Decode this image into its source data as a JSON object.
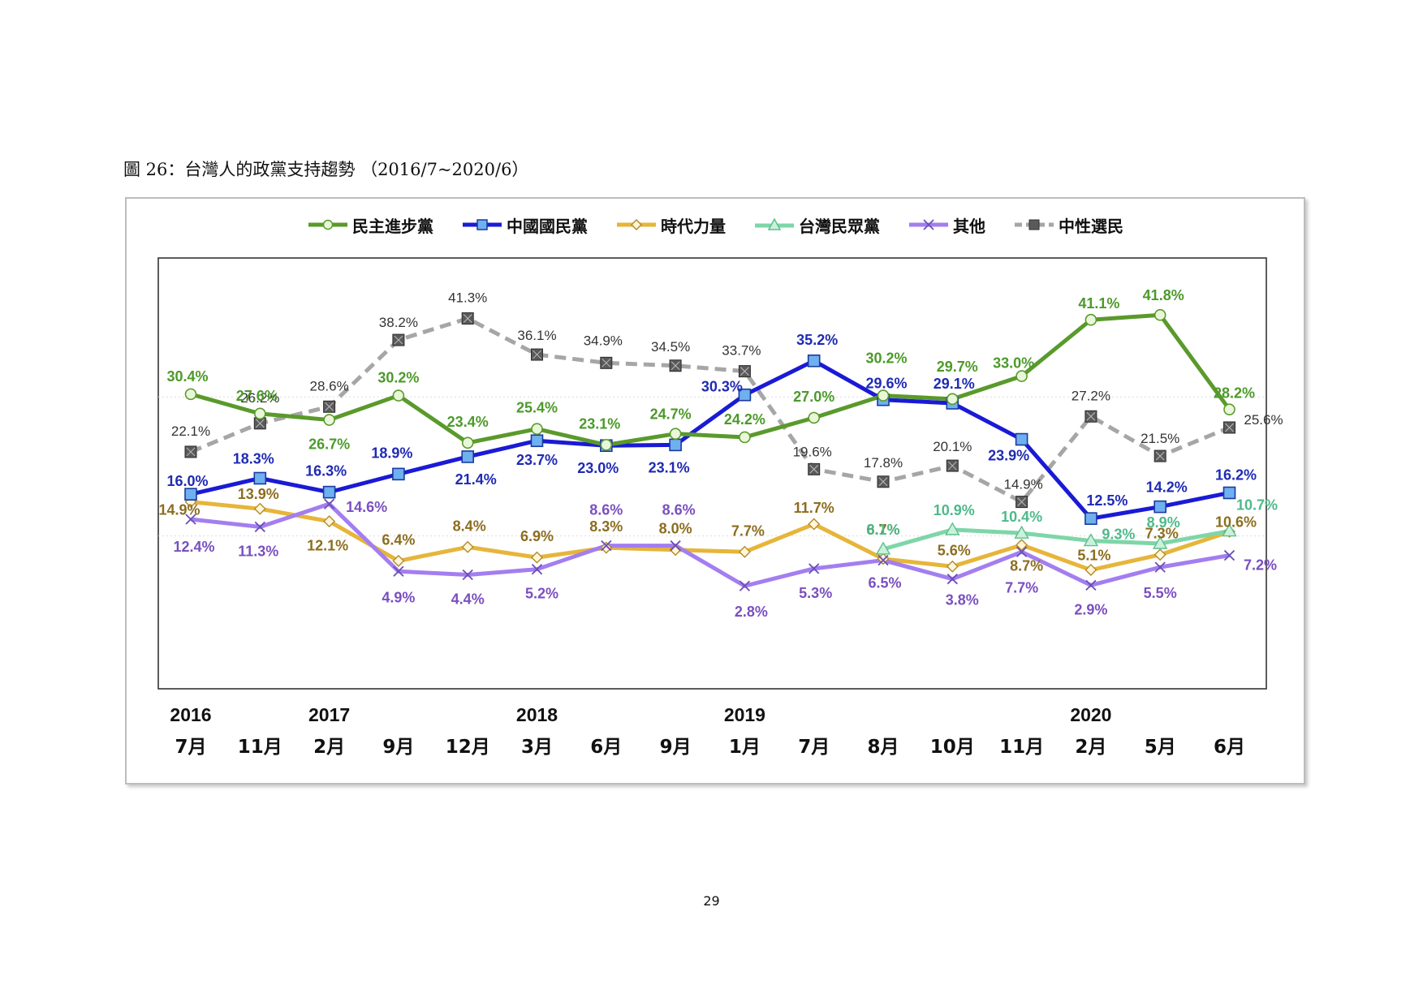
{
  "figure_title": "圖 26：台灣人的政黨支持趨勢 （2016/7~2020/6）",
  "page_number": "29",
  "colors": {
    "dpp": "#5a9a2c",
    "dpp_label": "#4c9a2a",
    "kmt": "#1a1ad6",
    "kmt_label": "#1f2bb3",
    "npp": "#e6b53a",
    "npp_label": "#8c6d1f",
    "tpp": "#7ed6a8",
    "tpp_label": "#4fb98a",
    "others": "#a37ef0",
    "others_label": "#7a4fc0",
    "neutral": "#a6a6a6",
    "neutral_label": "#333333"
  },
  "chart_data": {
    "type": "line",
    "title": "",
    "xlabel": "",
    "ylabel": "",
    "ylim": [
      -12,
      50
    ],
    "grid": false,
    "legend_placement": "top",
    "categories": [
      "7月",
      "11月",
      "2月",
      "9月",
      "12月",
      "3月",
      "6月",
      "9月",
      "1月",
      "7月",
      "8月",
      "10月",
      "11月",
      "2月",
      "5月",
      "6月"
    ],
    "year_labels": [
      "2016",
      "",
      "2017",
      "",
      "",
      "2018",
      "",
      "",
      "2019",
      "",
      "",
      "",
      "",
      "2020",
      "",
      ""
    ],
    "series": [
      {
        "name": "民主進步黨",
        "key": "dpp",
        "values": [
          30.4,
          27.6,
          26.7,
          30.2,
          23.4,
          25.4,
          23.1,
          24.7,
          24.2,
          27.0,
          30.2,
          29.7,
          33.0,
          41.1,
          41.8,
          28.2
        ],
        "labels": [
          "30.4%",
          "27.6%",
          "26.7%",
          "30.2%",
          "23.4%",
          "25.4%",
          "23.1%",
          "24.7%",
          "24.2%",
          "27.0%",
          "30.2%",
          "29.7%",
          "33.0%",
          "41.1%",
          "41.8%",
          "28.2%"
        ]
      },
      {
        "name": "中國國民黨",
        "key": "kmt",
        "values": [
          16.0,
          18.3,
          16.3,
          18.9,
          21.4,
          23.7,
          23.0,
          23.1,
          30.3,
          35.2,
          29.6,
          29.1,
          23.9,
          12.5,
          14.2,
          16.2
        ],
        "labels": [
          "16.0%",
          "18.3%",
          "16.3%",
          "18.9%",
          "21.4%",
          "23.7%",
          "23.0%",
          "23.1%",
          "30.3%",
          "35.2%",
          "29.6%",
          "29.1%",
          "23.9%",
          "12.5%",
          "14.2%",
          "16.2%"
        ]
      },
      {
        "name": "時代力量",
        "key": "npp",
        "values": [
          14.9,
          13.9,
          12.1,
          6.4,
          8.4,
          6.9,
          8.3,
          8.0,
          7.7,
          11.7,
          6.7,
          5.6,
          8.7,
          5.1,
          7.3,
          10.6
        ],
        "labels": [
          "14.9%",
          "13.9%",
          "12.1%",
          "6.4%",
          "8.4%",
          "6.9%",
          "8.3%",
          "8.0%",
          "7.7%",
          "11.7%",
          "6.7%",
          "5.6%",
          "8.7%",
          "5.1%",
          "7.3%",
          "10.6%"
        ]
      },
      {
        "name": "台灣民眾黨",
        "key": "tpp",
        "values": [
          null,
          null,
          null,
          null,
          null,
          null,
          null,
          null,
          null,
          null,
          8.1,
          10.9,
          10.4,
          9.3,
          8.9,
          10.7
        ],
        "labels": [
          "",
          "",
          "",
          "",
          "",
          "",
          "",
          "",
          "",
          "",
          "8.1%",
          "10.9%",
          "10.4%",
          "9.3%",
          "8.9%",
          "10.7%"
        ]
      },
      {
        "name": "其他",
        "key": "others",
        "values": [
          12.4,
          11.3,
          14.6,
          4.9,
          4.4,
          5.2,
          8.6,
          8.6,
          2.8,
          5.3,
          6.5,
          3.8,
          7.7,
          2.9,
          5.5,
          7.2
        ],
        "labels": [
          "12.4%",
          "11.3%",
          "14.6%",
          "4.9%",
          "4.4%",
          "5.2%",
          "8.6%",
          "8.6%",
          "2.8%",
          "5.3%",
          "6.5%",
          "3.8%",
          "7.7%",
          "2.9%",
          "5.5%",
          "7.2%"
        ]
      },
      {
        "name": "中性選民",
        "key": "neutral",
        "values": [
          22.1,
          26.2,
          28.6,
          38.2,
          41.3,
          36.1,
          34.9,
          34.5,
          33.7,
          19.6,
          17.8,
          20.1,
          14.9,
          27.2,
          21.5,
          25.6
        ],
        "labels": [
          "22.1%",
          "26.2%",
          "28.6%",
          "38.2%",
          "41.3%",
          "36.1%",
          "34.9%",
          "34.5%",
          "33.7%",
          "19.6%",
          "17.8%",
          "20.1%",
          "14.9%",
          "27.2%",
          "21.5%",
          "25.6%"
        ]
      }
    ]
  }
}
